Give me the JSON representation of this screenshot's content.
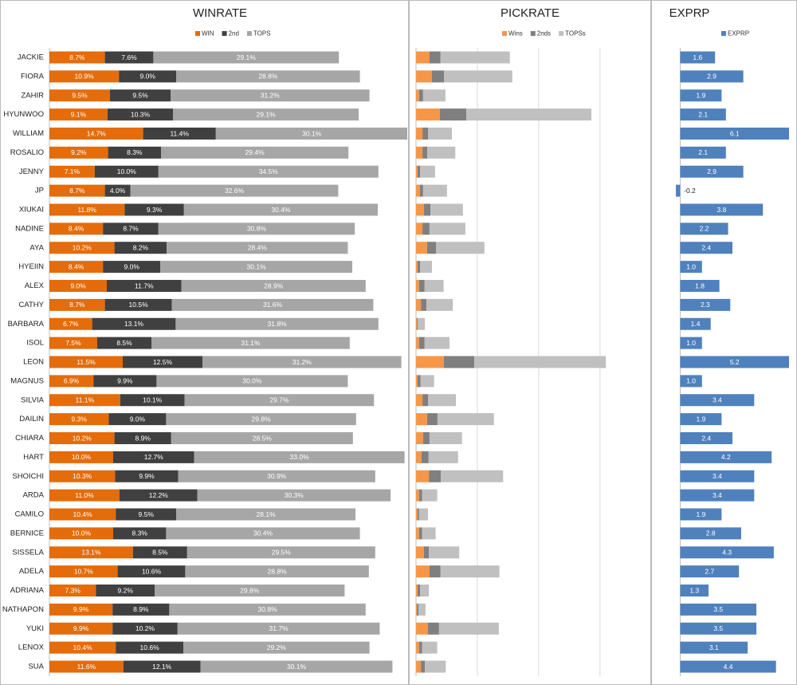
{
  "chart_data": [
    {
      "type": "stacked_bar_h",
      "title": "WINRATE",
      "categories": [
        "JACKIE",
        "FIORA",
        "ZAHIR",
        "HYUNWOO",
        "WILLIAM",
        "ROSALIO",
        "JENNY",
        "JP",
        "XIUKAI",
        "NADINE",
        "AYA",
        "HYEIIN",
        "ALEX",
        "CATHY",
        "BARBARA",
        "ISOL",
        "LEON",
        "MAGNUS",
        "SILVIA",
        "DAILIN",
        "CHIARA",
        "HART",
        "SHOICHI",
        "ARDA",
        "CAMILO",
        "BERNICE",
        "SISSELA",
        "ADELA",
        "ADRIANA",
        "NATHAPON",
        "YUKI",
        "LENOX",
        "SUA"
      ],
      "xlim": [
        0,
        56
      ],
      "series": [
        {
          "name": "WIN",
          "color": "#e46c0a",
          "values": [
            8.7,
            10.9,
            9.5,
            9.1,
            14.7,
            9.2,
            7.1,
            8.7,
            11.8,
            8.4,
            10.2,
            8.4,
            9.0,
            8.7,
            6.7,
            7.5,
            11.5,
            6.9,
            11.1,
            9.3,
            10.2,
            10.0,
            10.3,
            11.0,
            10.4,
            10.0,
            13.1,
            10.7,
            7.3,
            9.9,
            9.9,
            10.4,
            11.6
          ],
          "value_labels": [
            "8.7%",
            "10.9%",
            "9.5%",
            "9.1%",
            "14.7%",
            "9.2%",
            "7.1%",
            "8.7%",
            "11.8%",
            "8.4%",
            "10.2%",
            "8.4%",
            "9.0%",
            "8.7%",
            "6.7%",
            "7.5%",
            "11.5%",
            "6.9%",
            "11.1%",
            "9.3%",
            "10.2%",
            "10.0%",
            "10.3%",
            "11.0%",
            "10.4%",
            "10.0%",
            "13.1%",
            "10.7%",
            "7.3%",
            "9.9%",
            "9.9%",
            "10.4%",
            "11.6%"
          ]
        },
        {
          "name": "2nd",
          "color": "#404040",
          "values": [
            7.6,
            9.0,
            9.5,
            10.3,
            11.4,
            8.3,
            10.0,
            4.0,
            9.3,
            8.7,
            8.2,
            9.0,
            11.7,
            10.5,
            13.1,
            8.5,
            12.5,
            9.9,
            10.1,
            9.0,
            8.9,
            12.7,
            9.9,
            12.2,
            9.5,
            8.3,
            8.5,
            10.6,
            9.2,
            8.9,
            10.2,
            10.6,
            12.1
          ],
          "value_labels": [
            "7.6%",
            "9.0%",
            "9.5%",
            "10.3%",
            "11.4%",
            "8.3%",
            "10.0%",
            "4.0%",
            "9.3%",
            "8.7%",
            "8.2%",
            "9.0%",
            "11.7%",
            "10.5%",
            "13.1%",
            "8.5%",
            "12.5%",
            "9.9%",
            "10.1%",
            "9.0%",
            "8.9%",
            "12.7%",
            "9.9%",
            "12.2%",
            "9.5%",
            "8.3%",
            "8.5%",
            "10.6%",
            "9.2%",
            "8.9%",
            "10.2%",
            "10.6%",
            "12.1%"
          ]
        },
        {
          "name": "TOPS",
          "color": "#a6a6a6",
          "values": [
            29.1,
            28.8,
            31.2,
            29.1,
            30.1,
            29.4,
            34.5,
            32.6,
            30.4,
            30.8,
            28.4,
            30.1,
            28.9,
            31.6,
            31.8,
            31.1,
            31.2,
            30.0,
            29.7,
            29.8,
            28.5,
            33.0,
            30.9,
            30.3,
            28.1,
            30.4,
            29.5,
            28.8,
            29.8,
            30.8,
            31.7,
            29.2,
            30.1
          ],
          "value_labels": [
            "29.1%",
            "28.8%",
            "31.2%",
            "29.1%",
            "30.1%",
            "29.4%",
            "34.5%",
            "32.6%",
            "30.4%",
            "30.8%",
            "28.4%",
            "30.1%",
            "28.9%",
            "31.6%",
            "31.8%",
            "31.1%",
            "31.2%",
            "30.0%",
            "29.7%",
            "29.8%",
            "28.5%",
            "33.0%",
            "30.9%",
            "30.3%",
            "28.1%",
            "30.4%",
            "29.5%",
            "28.8%",
            "29.8%",
            "30.8%",
            "31.7%",
            "29.2%",
            "30.1%"
          ]
        }
      ]
    },
    {
      "type": "stacked_bar_h",
      "title": "PICKRATE",
      "xlim": [
        0,
        7.2
      ],
      "xticks": [
        0,
        2,
        4,
        6
      ],
      "grid": true,
      "series": [
        {
          "name": "Wins",
          "color": "#f79646",
          "values": [
            0.44,
            0.52,
            0.1,
            0.78,
            0.21,
            0.21,
            0.05,
            0.13,
            0.26,
            0.21,
            0.36,
            0.05,
            0.1,
            0.16,
            0.03,
            0.1,
            0.91,
            0.05,
            0.21,
            0.36,
            0.23,
            0.18,
            0.42,
            0.1,
            0.05,
            0.1,
            0.26,
            0.44,
            0.05,
            0.03,
            0.39,
            0.1,
            0.16
          ]
        },
        {
          "name": "2nds",
          "color": "#7f7f7f",
          "values": [
            0.36,
            0.39,
            0.13,
            0.86,
            0.18,
            0.16,
            0.08,
            0.1,
            0.21,
            0.23,
            0.29,
            0.08,
            0.18,
            0.18,
            0.03,
            0.18,
            0.99,
            0.1,
            0.18,
            0.34,
            0.21,
            0.23,
            0.39,
            0.1,
            0.05,
            0.1,
            0.16,
            0.36,
            0.08,
            0.05,
            0.36,
            0.1,
            0.13
          ]
        },
        {
          "name": "TOPSs",
          "color": "#c0c0c0",
          "values": [
            2.26,
            2.23,
            0.73,
            4.08,
            0.78,
            0.91,
            0.49,
            0.78,
            1.06,
            1.17,
            1.58,
            0.39,
            0.62,
            0.86,
            0.23,
            0.81,
            4.29,
            0.44,
            0.91,
            1.84,
            1.06,
            0.96,
            2.03,
            0.49,
            0.29,
            0.44,
            0.99,
            1.92,
            0.29,
            0.23,
            1.95,
            0.49,
            0.68
          ]
        }
      ]
    },
    {
      "type": "bar_h",
      "title": "EXPRP",
      "xlim": [
        -0.2,
        5.0
      ],
      "series": [
        {
          "name": "EXPRP",
          "color": "#4f81bd",
          "values": [
            1.6,
            2.9,
            1.9,
            2.1,
            6.1,
            2.1,
            2.9,
            -0.2,
            3.8,
            2.2,
            2.4,
            1.0,
            1.8,
            2.3,
            1.4,
            1.0,
            5.2,
            1.0,
            3.4,
            1.9,
            2.4,
            4.2,
            3.4,
            3.4,
            1.9,
            2.8,
            4.3,
            2.7,
            1.3,
            3.5,
            3.5,
            3.1,
            4.4
          ],
          "value_labels": [
            "1.6",
            "2.9",
            "1.9",
            "2.1",
            "6.1",
            "2.1",
            "2.9",
            "-0.2",
            "3.8",
            "2.2",
            "2.4",
            "1.0",
            "1.8",
            "2.3",
            "1.4",
            "1.0",
            "5.2",
            "1.0",
            "3.4",
            "1.9",
            "2.4",
            "4.2",
            "3.4",
            "3.4",
            "1.9",
            "2.8",
            "4.3",
            "2.7",
            "1.3",
            "3.5",
            "3.5",
            "3.1",
            "4.4"
          ]
        }
      ]
    }
  ]
}
